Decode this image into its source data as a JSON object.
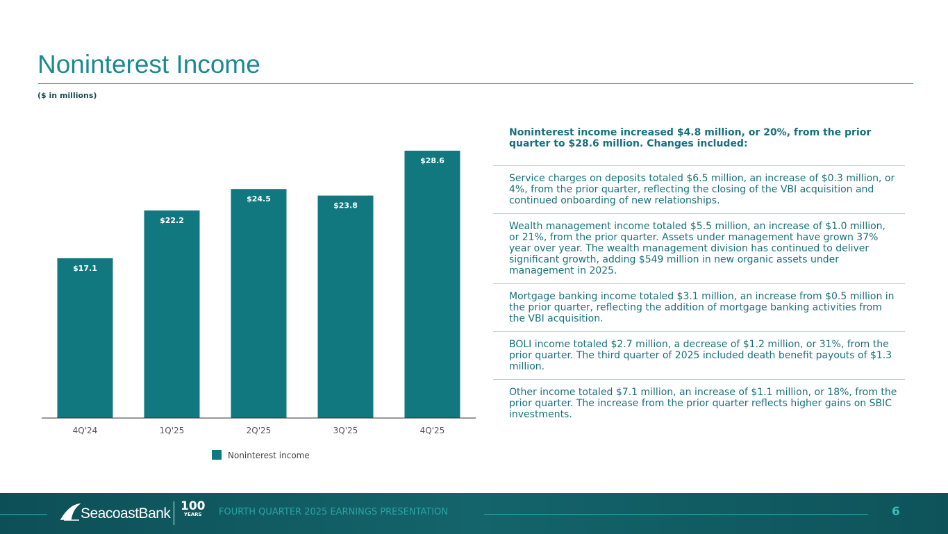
{
  "header": {
    "title": "Noninterest Income",
    "subtitle": "($ in millions)"
  },
  "chart_data": {
    "type": "bar",
    "categories": [
      "4Q'24",
      "1Q'25",
      "2Q'25",
      "3Q'25",
      "4Q'25"
    ],
    "series": [
      {
        "name": "Noninterest income",
        "color": "#127880",
        "values": [
          17.1,
          22.2,
          24.5,
          23.8,
          28.6
        ],
        "value_labels": [
          "$17.1",
          "$22.2",
          "$24.5",
          "$23.8",
          "$28.6"
        ]
      }
    ],
    "legend": "bottom"
  },
  "commentary": {
    "heading": "Noninterest income increased $4.8 million, or 20%, from the prior quarter to $28.6 million. Changes included:",
    "items": [
      "Service charges on deposits totaled $6.5 million, an increase of $0.3 million, or 4%, from the prior quarter, reflecting the closing of the VBI acquisition and continued onboarding of new relationships.",
      "Wealth management income totaled $5.5 million, an increase of $1.0 million, or 21%, from the prior quarter. Assets under management have grown 37% year over year. The wealth management division has continued to deliver significant growth, adding $549 million in new organic assets under management in 2025.",
      "Mortgage banking income totaled $3.1 million, an increase from $0.5 million in the prior quarter, reflecting the addition of mortgage banking activities from the VBI acquisition.",
      "BOLI income totaled $2.7 million, a decrease of $1.2 million, or 31%, from the prior quarter. The third quarter of 2025 included death benefit payouts of $1.3 million.",
      "Other income totaled $7.1 million, an increase of $1.1 million, or 18%, from the prior quarter. The increase from the prior quarter reflects higher gains on SBIC investments."
    ]
  },
  "footer": {
    "logo": "SeacoastBank",
    "anniversary": "100",
    "anniversary_unit": "YEARS",
    "text": "FOURTH QUARTER 2025 EARNINGS PRESENTATION",
    "page": "6"
  }
}
